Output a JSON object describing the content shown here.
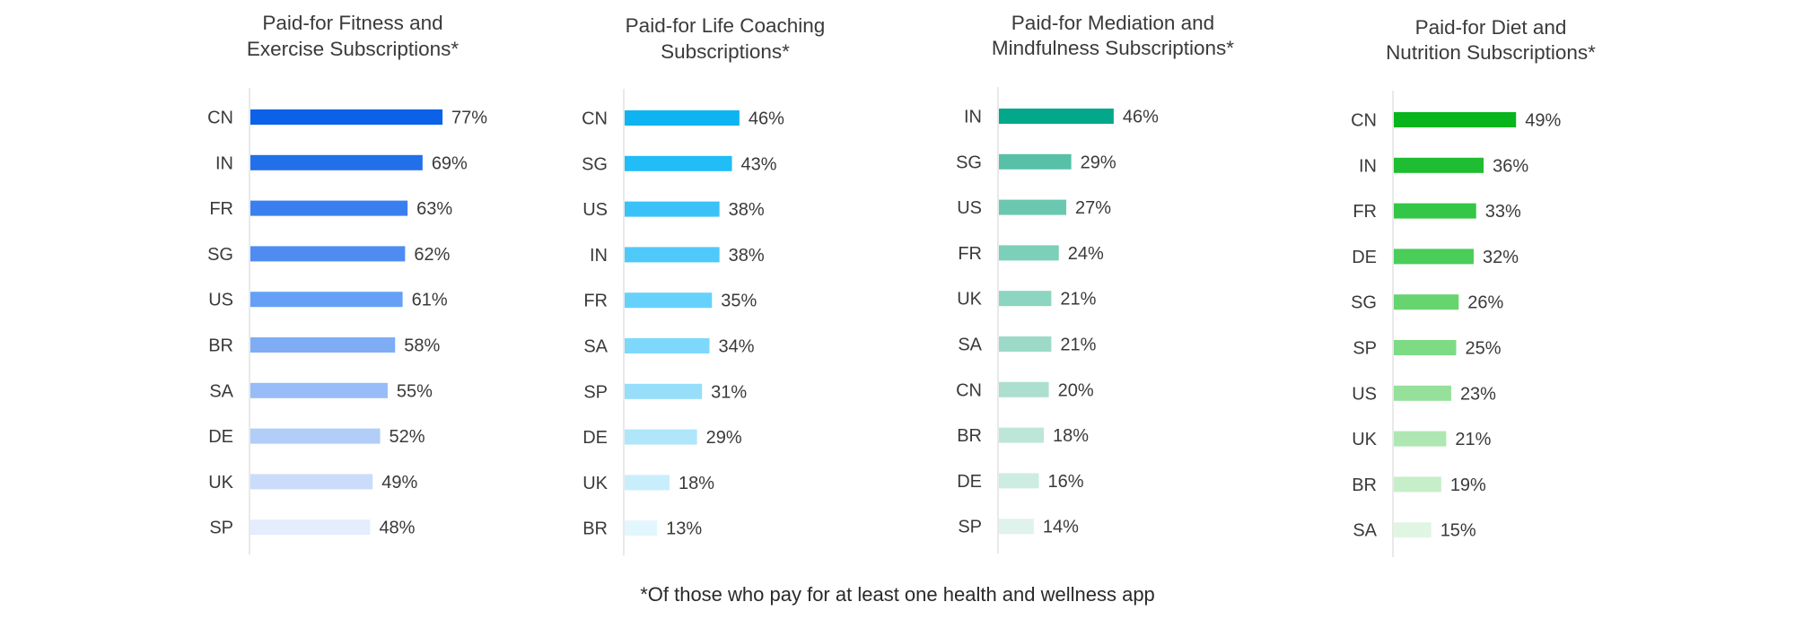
{
  "chart_data": [
    {
      "type": "bar",
      "orientation": "horizontal",
      "title": [
        "Paid-for Fitness and",
        "Exercise Subscriptions*"
      ],
      "categories": [
        "CN",
        "IN",
        "FR",
        "SG",
        "US",
        "BR",
        "SA",
        "DE",
        "UK",
        "SP"
      ],
      "values": [
        77,
        69,
        63,
        62,
        61,
        58,
        55,
        52,
        49,
        48
      ],
      "labels": [
        "77%",
        "69%",
        "63%",
        "62%",
        "61%",
        "58%",
        "55%",
        "52%",
        "49%",
        "48%"
      ],
      "colors": [
        "#0b62e8",
        "#226fea",
        "#3a7ff0",
        "#4f8cf2",
        "#65a0f6",
        "#7eadf6",
        "#97bcf7",
        "#b2cdf8",
        "#cbdcfa",
        "#e4edfc"
      ],
      "xlim": [
        0,
        100
      ]
    },
    {
      "type": "bar",
      "orientation": "horizontal",
      "title": [
        "Paid-for Life Coaching",
        "Subscriptions*"
      ],
      "categories": [
        "CN",
        "SG",
        "US",
        "IN",
        "FR",
        "SA",
        "SP",
        "DE",
        "UK",
        "BR"
      ],
      "values": [
        46,
        43,
        38,
        38,
        35,
        34,
        31,
        29,
        18,
        13
      ],
      "labels": [
        "46%",
        "43%",
        "38%",
        "38%",
        "35%",
        "34%",
        "31%",
        "29%",
        "18%",
        "13%"
      ],
      "colors": [
        "#0eb4f2",
        "#22bcf7",
        "#3ac2f8",
        "#4ec9f9",
        "#66d2fb",
        "#7ed8fb",
        "#96def9",
        "#b0e6fa",
        "#c9eefb",
        "#e2f6fd"
      ],
      "xlim": [
        0,
        100
      ]
    },
    {
      "type": "bar",
      "orientation": "horizontal",
      "title": [
        "Paid-for Mediation and",
        "Mindfulness Subscriptions*"
      ],
      "categories": [
        "IN",
        "SG",
        "US",
        "FR",
        "UK",
        "SA",
        "CN",
        "BR",
        "DE",
        "SP"
      ],
      "values": [
        46,
        29,
        27,
        24,
        21,
        21,
        20,
        18,
        16,
        14
      ],
      "labels": [
        "46%",
        "29%",
        "27%",
        "24%",
        "21%",
        "21%",
        "20%",
        "18%",
        "16%",
        "14%"
      ],
      "colors": [
        "#03a88a",
        "#57c1a8",
        "#6bc8b0",
        "#7ccfb9",
        "#8cd5c0",
        "#9cdac7",
        "#acdfcf",
        "#bde6d8",
        "#cdece2",
        "#dff3ec"
      ],
      "xlim": [
        0,
        100
      ]
    },
    {
      "type": "bar",
      "orientation": "horizontal",
      "title": [
        "Paid-for Diet and",
        "Nutrition Subscriptions*"
      ],
      "categories": [
        "CN",
        "IN",
        "FR",
        "DE",
        "SG",
        "SP",
        "US",
        "UK",
        "BR",
        "SA"
      ],
      "values": [
        49,
        36,
        33,
        32,
        26,
        25,
        23,
        21,
        19,
        15
      ],
      "labels": [
        "49%",
        "36%",
        "33%",
        "32%",
        "26%",
        "25%",
        "23%",
        "21%",
        "19%",
        "15%"
      ],
      "colors": [
        "#08b51c",
        "#1fbd32",
        "#34c646",
        "#4acd59",
        "#66d46f",
        "#7ddb84",
        "#95e09a",
        "#aee7b1",
        "#c6eec8",
        "#e1f6e2"
      ],
      "xlim": [
        0,
        100
      ]
    }
  ],
  "footnote": "*Of those who pay for at least one health and wellness app"
}
